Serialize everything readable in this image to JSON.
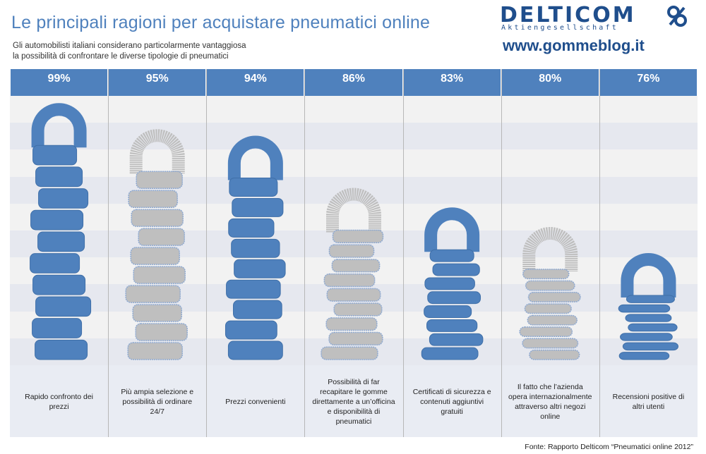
{
  "header": {
    "title": "Le principali ragioni per acquistare pneumatici online",
    "subtitle_line1": "Gli automobilisti italiani considerano particolarmente vantaggiosa",
    "subtitle_line2": "la possibilità di confrontare le diverse tipologie di pneumatici"
  },
  "brand": {
    "name": "DELTICOM",
    "tagline": "Aktiengesellschaft",
    "site": "www.gommeblog.it",
    "primary_color": "#1f4e8c"
  },
  "footer": {
    "source": "Fonte: Rapporto Delticom “Pneumatici online 2012”"
  },
  "colors": {
    "header": "#4f81bd",
    "tire_blue": "#4f81bd",
    "tire_gray": "#bfbfbf",
    "tire_gray_outline": "#8ea9d1"
  },
  "chart_data": {
    "type": "bar",
    "style": "pictograph stacked tires with padlock",
    "categories": [
      "Rapido confronto dei prezzi",
      "Più ampia selezione e possibilità di ordinare 24/7",
      "Prezzi convenienti",
      "Possibilità di far recapitare le gomme direttamente a un’officina e disponibilità di pneumatici",
      "Certificati di sicurezza e contenuti aggiuntivi gratuiti",
      "Il fatto che l’azienda opera internazionalmente attraverso altri negozi online",
      "Recensioni positive di altri utenti"
    ],
    "value_labels": [
      "99%",
      "95%",
      "94%",
      "86%",
      "83%",
      "80%",
      "76%"
    ],
    "values": [
      99,
      95,
      94,
      86,
      83,
      80,
      76
    ],
    "tire_style": [
      "blue",
      "gray",
      "blue",
      "gray",
      "blue",
      "gray",
      "blue"
    ],
    "ylim": [
      0,
      100
    ],
    "grid": true
  }
}
